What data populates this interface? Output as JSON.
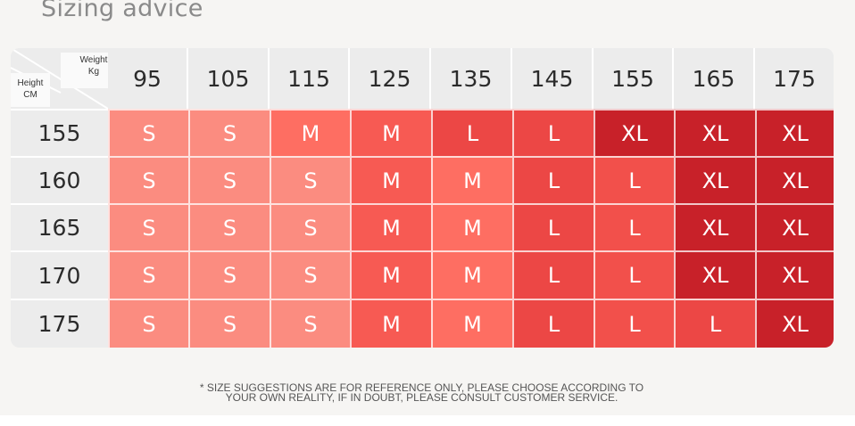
{
  "title": "Sizing advice",
  "table": {
    "corner_weight": "Weight",
    "corner_weight_unit": "Kg",
    "corner_height": "Height",
    "corner_height_unit": "CM",
    "weights": [
      "95",
      "105",
      "115",
      "125",
      "135",
      "145",
      "155",
      "165",
      "175"
    ],
    "heights": [
      "155",
      "160",
      "165",
      "170",
      "175"
    ],
    "sizes": [
      [
        "S",
        "S",
        "M",
        "M",
        "L",
        "L",
        "XL",
        "XL",
        "XL"
      ],
      [
        "S",
        "S",
        "S",
        "M",
        "M",
        "L",
        "L",
        "XL",
        "XL"
      ],
      [
        "S",
        "S",
        "S",
        "M",
        "M",
        "L",
        "L",
        "XL",
        "XL"
      ],
      [
        "S",
        "S",
        "S",
        "M",
        "M",
        "L",
        "L",
        "XL",
        "XL"
      ],
      [
        "S",
        "S",
        "S",
        "M",
        "M",
        "L",
        "L",
        "L",
        "XL"
      ]
    ]
  },
  "colors": {
    "S": "#fb8c80",
    "M_light": "#fe6e62",
    "M": "#f75a53",
    "L_light": "#f2504b",
    "L": "#ec4745",
    "XL_light": "#d32a30",
    "XL": "#c82129"
  },
  "footnote_line1": "* SIZE SUGGESTIONS ARE FOR REFERENCE ONLY, PLEASE CHOOSE ACCORDING TO",
  "footnote_line2": "YOUR OWN REALITY, IF IN DOUBT, PLEASE CONSULT CUSTOMER SERVICE."
}
